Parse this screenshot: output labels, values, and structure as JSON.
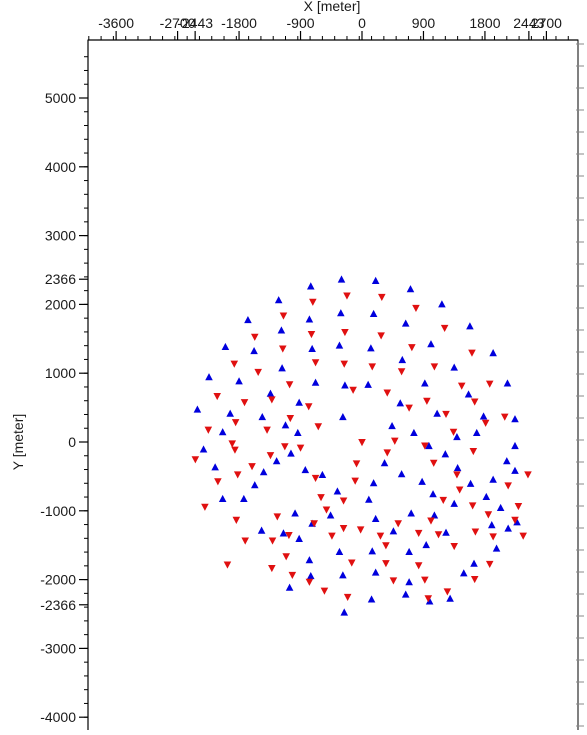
{
  "chart_data": {
    "type": "scatter",
    "xlabel": "X [meter]",
    "ylabel": "Y [meter]",
    "xlim": [
      -4380,
      3440
    ],
    "ylim": [
      -4180,
      5800
    ],
    "x_ticks": [
      -3600,
      -2700,
      -2443,
      -1800,
      -900,
      0,
      900,
      1800,
      2443,
      2700
    ],
    "x_tick_labels": [
      "-3600",
      "-2700",
      "-2443",
      "-1800",
      "-900",
      "0",
      "900",
      "1800",
      "2443",
      "2700"
    ],
    "y_ticks": [
      5000,
      4000,
      3000,
      2366,
      2000,
      1000,
      0,
      -1000,
      -2000,
      -2366,
      -3000,
      -4000
    ],
    "y_tick_labels": [
      "5000",
      "4000",
      "3000",
      "2366",
      "2000",
      "1000",
      "0",
      "-1000",
      "-2000",
      "-2366",
      "-3000",
      "-4000"
    ],
    "grid": false,
    "colors": {
      "up": "#0000dd",
      "down": "#e01010",
      "axis": "#000000"
    },
    "series": [
      {
        "marker": "triangle-up",
        "color": "#0000dd",
        "points": [
          [
            -300,
            2360
          ],
          [
            200,
            2340
          ],
          [
            -750,
            2260
          ],
          [
            710,
            2220
          ],
          [
            -1220,
            2060
          ],
          [
            1170,
            2000
          ],
          [
            -1670,
            1770
          ],
          [
            1580,
            1680
          ],
          [
            -2000,
            1380
          ],
          [
            1920,
            1290
          ],
          [
            -2240,
            940
          ],
          [
            2130,
            850
          ],
          [
            -2410,
            470
          ],
          [
            2240,
            330
          ],
          [
            -310,
            1870
          ],
          [
            170,
            1860
          ],
          [
            -770,
            1780
          ],
          [
            640,
            1720
          ],
          [
            -1180,
            1620
          ],
          [
            1010,
            1420
          ],
          [
            -1580,
            1320
          ],
          [
            1350,
            1080
          ],
          [
            -1800,
            880
          ],
          [
            1560,
            690
          ],
          [
            -1930,
            410
          ],
          [
            1780,
            370
          ],
          [
            -2040,
            140
          ],
          [
            1680,
            130
          ],
          [
            -330,
            1400
          ],
          [
            130,
            1360
          ],
          [
            -730,
            1350
          ],
          [
            590,
            1190
          ],
          [
            -1170,
            1070
          ],
          [
            920,
            850
          ],
          [
            -1340,
            700
          ],
          [
            1100,
            410
          ],
          [
            -1460,
            360
          ],
          [
            1390,
            70
          ],
          [
            -250,
            820
          ],
          [
            90,
            830
          ],
          [
            -680,
            860
          ],
          [
            560,
            560
          ],
          [
            -920,
            570
          ],
          [
            -1120,
            240
          ],
          [
            -940,
            130
          ],
          [
            -280,
            360
          ],
          [
            -1040,
            -170
          ],
          [
            -1250,
            -280
          ],
          [
            -1440,
            -440
          ],
          [
            -1570,
            -630
          ],
          [
            -1730,
            -830
          ],
          [
            -2040,
            -830
          ],
          [
            -2150,
            -370
          ],
          [
            -2320,
            -110
          ],
          [
            -830,
            -410
          ],
          [
            -580,
            -480
          ],
          [
            -360,
            -720
          ],
          [
            -460,
            -1070
          ],
          [
            -730,
            -1190
          ],
          [
            -980,
            -1040
          ],
          [
            -1150,
            -1330
          ],
          [
            -1470,
            -1290
          ],
          [
            -920,
            -1410
          ],
          [
            -770,
            -1720
          ],
          [
            -330,
            -1600
          ],
          [
            -280,
            -1940
          ],
          [
            150,
            -1590
          ],
          [
            200,
            -1900
          ],
          [
            690,
            -1600
          ],
          [
            690,
            -2040
          ],
          [
            -750,
            -1950
          ],
          [
            -1060,
            -2120
          ],
          [
            -260,
            -2480
          ],
          [
            140,
            -2290
          ],
          [
            640,
            -2220
          ],
          [
            990,
            -2320
          ],
          [
            1290,
            -2280
          ],
          [
            1490,
            -1910
          ],
          [
            1640,
            -1770
          ],
          [
            1970,
            -1550
          ],
          [
            2140,
            -1260
          ],
          [
            2270,
            -1170
          ],
          [
            2030,
            -960
          ],
          [
            1820,
            -800
          ],
          [
            1590,
            -610
          ],
          [
            1400,
            -380
          ],
          [
            1220,
            -180
          ],
          [
            980,
            -60
          ],
          [
            760,
            130
          ],
          [
            440,
            230
          ],
          [
            330,
            -310
          ],
          [
            170,
            -600
          ],
          [
            100,
            -840
          ],
          [
            200,
            -1120
          ],
          [
            460,
            -1300
          ],
          [
            720,
            -1040
          ],
          [
            1060,
            -1070
          ],
          [
            1040,
            -760
          ],
          [
            880,
            -580
          ],
          [
            580,
            -470
          ],
          [
            2120,
            -280
          ],
          [
            2240,
            -60
          ],
          [
            1920,
            -550
          ],
          [
            1350,
            -900
          ],
          [
            1230,
            -1320
          ],
          [
            940,
            -1500
          ],
          [
            1900,
            -1210
          ],
          [
            2240,
            -420
          ]
        ]
      },
      {
        "marker": "triangle-down",
        "color": "#e01010",
        "points": [
          [
            0,
            0
          ],
          [
            -220,
            2130
          ],
          [
            290,
            2110
          ],
          [
            -720,
            2040
          ],
          [
            790,
            1950
          ],
          [
            -1150,
            1840
          ],
          [
            1210,
            1660
          ],
          [
            -1570,
            1530
          ],
          [
            1610,
            1300
          ],
          [
            -1870,
            1140
          ],
          [
            1870,
            850
          ],
          [
            -2120,
            670
          ],
          [
            2090,
            370
          ],
          [
            -2250,
            180
          ],
          [
            2430,
            -470
          ],
          [
            -250,
            1600
          ],
          [
            280,
            1550
          ],
          [
            -740,
            1570
          ],
          [
            730,
            1380
          ],
          [
            -1160,
            1360
          ],
          [
            1060,
            1100
          ],
          [
            -1520,
            1020
          ],
          [
            1460,
            820
          ],
          [
            -1720,
            580
          ],
          [
            1650,
            590
          ],
          [
            -1850,
            290
          ],
          [
            1810,
            280
          ],
          [
            -1900,
            -20
          ],
          [
            1630,
            -130
          ],
          [
            -260,
            1140
          ],
          [
            150,
            1100
          ],
          [
            -680,
            1160
          ],
          [
            580,
            1030
          ],
          [
            -1060,
            840
          ],
          [
            950,
            600
          ],
          [
            -1320,
            620
          ],
          [
            1230,
            410
          ],
          [
            -1390,
            180
          ],
          [
            1340,
            150
          ],
          [
            -130,
            760
          ],
          [
            370,
            720
          ],
          [
            -780,
            520
          ],
          [
            690,
            500
          ],
          [
            -1050,
            350
          ],
          [
            -640,
            230
          ],
          [
            -900,
            -80
          ],
          [
            -1130,
            -60
          ],
          [
            -1340,
            -190
          ],
          [
            -1610,
            -350
          ],
          [
            -1820,
            -470
          ],
          [
            -2110,
            -570
          ],
          [
            -2300,
            -940
          ],
          [
            -2440,
            -250
          ],
          [
            -1860,
            -110
          ],
          [
            -680,
            -520
          ],
          [
            -600,
            -800
          ],
          [
            -700,
            -1180
          ],
          [
            -1240,
            -1080
          ],
          [
            -1070,
            -1350
          ],
          [
            -1310,
            -1430
          ],
          [
            -1710,
            -1430
          ],
          [
            -1970,
            -1780
          ],
          [
            -1320,
            -1830
          ],
          [
            -1020,
            -1930
          ],
          [
            -770,
            -2030
          ],
          [
            -550,
            -2160
          ],
          [
            -210,
            -2250
          ],
          [
            -150,
            -1750
          ],
          [
            350,
            -1760
          ],
          [
            460,
            -2010
          ],
          [
            830,
            -1790
          ],
          [
            920,
            -2000
          ],
          [
            970,
            -2270
          ],
          [
            1250,
            -2170
          ],
          [
            1650,
            -1990
          ],
          [
            1870,
            -1770
          ],
          [
            1920,
            -1370
          ],
          [
            2360,
            -1360
          ],
          [
            2240,
            -1130
          ],
          [
            1850,
            -1050
          ],
          [
            1620,
            -920
          ],
          [
            1430,
            -690
          ],
          [
            1390,
            -470
          ],
          [
            1050,
            -300
          ],
          [
            920,
            -50
          ],
          [
            480,
            20
          ],
          [
            370,
            -150
          ],
          [
            -80,
            -310
          ],
          [
            -100,
            -560
          ],
          [
            -270,
            -850
          ],
          [
            -520,
            -980
          ],
          [
            -440,
            -1360
          ],
          [
            -270,
            -1250
          ],
          [
            -20,
            -1270
          ],
          [
            270,
            -1360
          ],
          [
            350,
            -1500
          ],
          [
            530,
            -1180
          ],
          [
            830,
            -1320
          ],
          [
            1120,
            -1340
          ],
          [
            1350,
            -1510
          ],
          [
            1660,
            -1300
          ],
          [
            2140,
            -630
          ],
          [
            2290,
            -930
          ],
          [
            1010,
            -1140
          ],
          [
            -1110,
            -1660
          ],
          [
            -1840,
            -1130
          ],
          [
            1190,
            -840
          ]
        ]
      }
    ]
  }
}
